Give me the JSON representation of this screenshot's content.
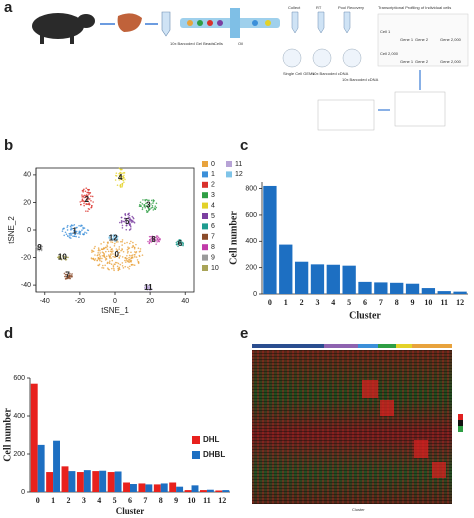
{
  "panel_labels": [
    "a",
    "b",
    "c",
    "d",
    "e"
  ],
  "panel_a": {
    "steps": [
      "10x Barcoded Gel Beads",
      "Cells",
      "Oil",
      "Collect",
      "RT",
      "Pool Recovery",
      "Transcriptional Profiling of Individual cells",
      "Single Cell GEMs",
      "10x Barcoded cDNA",
      "10x Barcoded cDNA"
    ],
    "matrix": [
      "Cell 1",
      "Cell 2,000",
      "Gene 1",
      "Gene 2",
      "Gene 2,000",
      "Gene 1",
      "Gene 2",
      "Gene 2,000"
    ]
  },
  "panel_e": {
    "x_label": "Cluster"
  },
  "chart_data": [
    {
      "type": "scatter",
      "x_label": "tSNE_1",
      "y_label": "tSNE_2",
      "xlim": [
        -45,
        45
      ],
      "ylim": [
        -45,
        45
      ],
      "xticks": [
        -40,
        -20,
        0,
        20,
        40
      ],
      "yticks": [
        -40,
        -20,
        0,
        20,
        40
      ],
      "series": [
        {
          "name": "0",
          "color": "#e8a33d",
          "x": [
            1
          ],
          "y": [
            -18
          ]
        },
        {
          "name": "1",
          "color": "#3b8fd9",
          "x": [
            -23
          ],
          "y": [
            -1
          ]
        },
        {
          "name": "2",
          "color": "#d9312b",
          "x": [
            -16
          ],
          "y": [
            22
          ]
        },
        {
          "name": "3",
          "color": "#2e9e44",
          "x": [
            19
          ],
          "y": [
            18
          ]
        },
        {
          "name": "4",
          "color": "#e3d229",
          "x": [
            3
          ],
          "y": [
            38
          ]
        },
        {
          "name": "5",
          "color": "#7b3fa0",
          "x": [
            7
          ],
          "y": [
            6
          ]
        },
        {
          "name": "6",
          "color": "#1e9c8f",
          "x": [
            37
          ],
          "y": [
            -10
          ]
        },
        {
          "name": "7",
          "color": "#8a4b2a",
          "x": [
            -27
          ],
          "y": [
            -33
          ]
        },
        {
          "name": "8",
          "color": "#c13aa8",
          "x": [
            22
          ],
          "y": [
            -7
          ]
        },
        {
          "name": "9",
          "color": "#9a9a9a",
          "x": [
            -43
          ],
          "y": [
            -13
          ]
        },
        {
          "name": "10",
          "color": "#a9a458",
          "x": [
            -30
          ],
          "y": [
            -20
          ]
        },
        {
          "name": "11",
          "color": "#b7a3d6",
          "x": [
            19
          ],
          "y": [
            -42
          ]
        },
        {
          "name": "12",
          "color": "#7fc4e8",
          "x": [
            -1
          ],
          "y": [
            -6
          ]
        }
      ]
    },
    {
      "type": "bar",
      "x_label": "Cluster",
      "y_label": "Cell number",
      "color": "#1d6fc2",
      "categories": [
        "0",
        "1",
        "2",
        "3",
        "4",
        "5",
        "6",
        "7",
        "8",
        "9",
        "10",
        "11",
        "12"
      ],
      "values": [
        820,
        375,
        245,
        225,
        222,
        215,
        92,
        88,
        85,
        78,
        45,
        22,
        18
      ],
      "ylim": [
        0,
        850
      ],
      "yticks": [
        0,
        200,
        400,
        600,
        800
      ]
    },
    {
      "type": "grouped_bar",
      "x_label": "Cluster",
      "y_label": "Cell number",
      "categories": [
        "0",
        "1",
        "2",
        "3",
        "4",
        "5",
        "6",
        "7",
        "8",
        "9",
        "10",
        "11",
        "12"
      ],
      "series": [
        {
          "name": "DHL",
          "color": "#e8211d",
          "values": [
            570,
            105,
            135,
            105,
            110,
            105,
            50,
            45,
            40,
            50,
            10,
            10,
            8
          ]
        },
        {
          "name": "DHBL",
          "color": "#1d6fc2",
          "values": [
            248,
            270,
            110,
            115,
            112,
            108,
            42,
            40,
            45,
            28,
            35,
            12,
            10
          ]
        }
      ],
      "ylim": [
        0,
        600
      ],
      "yticks": [
        0,
        200,
        400,
        600
      ],
      "legend": "right"
    }
  ]
}
